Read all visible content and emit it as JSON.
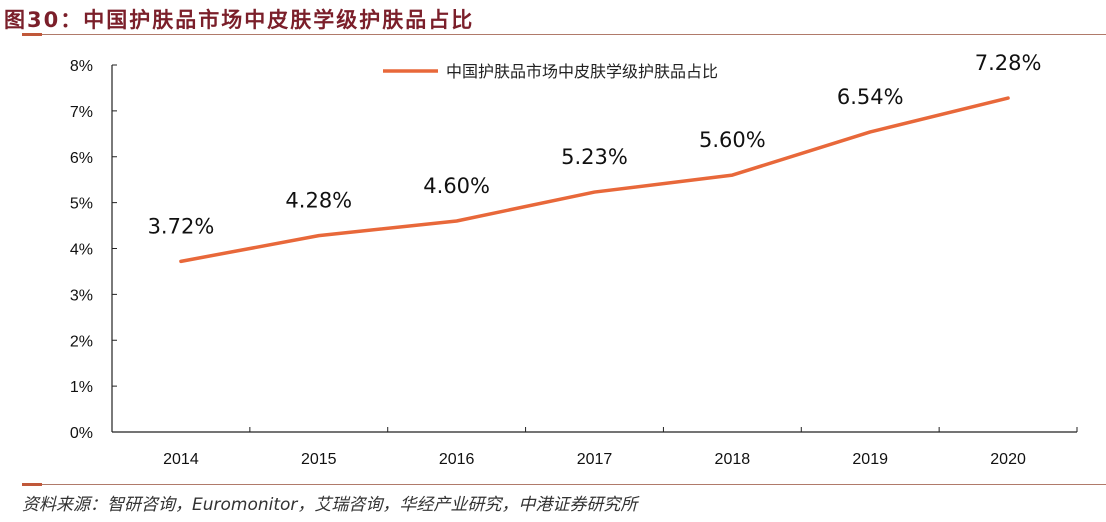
{
  "header": {
    "title": "图30：中国护肤品市场中皮肤学级护肤品占比"
  },
  "footer": {
    "source": "资料来源：智研咨询，Euromonitor，艾瑞咨询，华经产业研究，中港证券研究所"
  },
  "colors": {
    "line": "#e8683a",
    "title": "#7b1f2a",
    "axis": "#222222"
  },
  "chart_data": {
    "type": "line",
    "title": "图30：中国护肤品市场中皮肤学级护肤品占比",
    "xlabel": "",
    "ylabel": "",
    "categories": [
      "2014",
      "2015",
      "2016",
      "2017",
      "2018",
      "2019",
      "2020"
    ],
    "series": [
      {
        "name": "中国护肤品市场中皮肤学级护肤品占比",
        "values": [
          3.72,
          4.28,
          4.6,
          5.23,
          5.6,
          6.54,
          7.28
        ],
        "labels": [
          "3.72%",
          "4.28%",
          "4.60%",
          "5.23%",
          "5.60%",
          "6.54%",
          "7.28%"
        ]
      }
    ],
    "ylim": [
      0,
      8
    ],
    "yticks": [
      "0%",
      "1%",
      "2%",
      "3%",
      "4%",
      "5%",
      "6%",
      "7%",
      "8%"
    ],
    "grid": false,
    "legend_position": "top-center"
  }
}
